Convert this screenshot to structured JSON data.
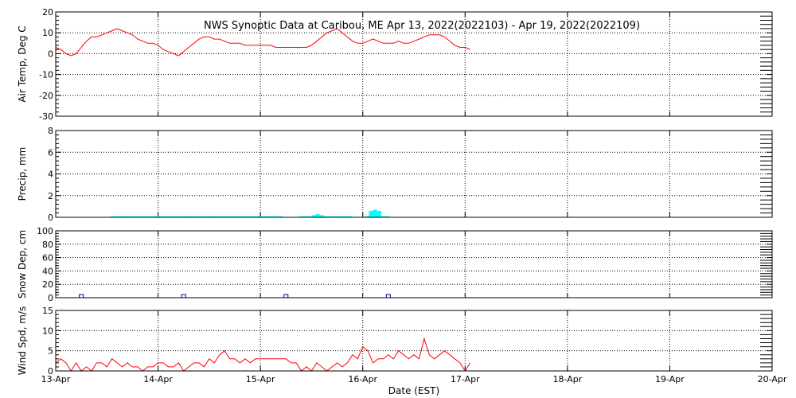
{
  "title": "NWS Synoptic Data at Caribou, ME   Apr 13, 2022(2022103) - Apr 19, 2022(2022109)",
  "xlabel": "Date (EST)",
  "x_ticks": [
    "13-Apr",
    "14-Apr",
    "15-Apr",
    "16-Apr",
    "17-Apr",
    "18-Apr",
    "19-Apr",
    "20-Apr"
  ],
  "colors": {
    "temp": "#ff0000",
    "precip": "#00ffff",
    "snow": "#00008b",
    "wind": "#ff0000",
    "grid": "#000000"
  },
  "chart_data": [
    {
      "type": "line",
      "ylabel": "Air Temp, Deg C",
      "ylim": [
        -30,
        20
      ],
      "y_ticks": [
        20,
        10,
        0,
        -10,
        -20,
        -30
      ],
      "x_units": "days since 13-Apr 00:00 EST",
      "grid": "dotted",
      "series": [
        {
          "x": [
            0.0,
            0.05,
            0.1,
            0.15,
            0.2,
            0.25,
            0.3,
            0.35,
            0.4,
            0.45,
            0.5,
            0.55,
            0.6,
            0.65,
            0.7,
            0.75,
            0.8,
            0.85,
            0.9,
            0.95,
            1.0,
            1.05,
            1.1,
            1.15,
            1.2,
            1.25,
            1.3,
            1.35,
            1.4,
            1.45,
            1.5,
            1.55,
            1.6,
            1.65,
            1.7,
            1.75,
            1.8,
            1.85,
            1.9,
            1.95,
            2.0,
            2.05,
            2.1,
            2.15,
            2.2,
            2.25,
            2.3,
            2.35,
            2.4,
            2.45,
            2.5,
            2.55,
            2.6,
            2.65,
            2.7,
            2.75,
            2.8,
            2.85,
            2.9,
            2.95,
            3.0,
            3.05,
            3.1,
            3.15,
            3.2,
            3.25,
            3.3,
            3.35,
            3.4,
            3.45,
            3.5,
            3.55,
            3.6,
            3.65,
            3.7,
            3.75,
            3.8,
            3.85,
            3.9,
            3.95,
            4.0,
            4.05
          ],
          "values": [
            3,
            2,
            0,
            -1,
            0,
            3,
            6,
            8,
            8,
            9,
            10,
            11,
            12,
            11,
            10,
            9,
            7,
            6,
            5,
            5,
            4,
            2,
            1,
            0,
            -1,
            1,
            3,
            5,
            7,
            8,
            8,
            7,
            7,
            6,
            5,
            5,
            5,
            4,
            4,
            4,
            4,
            4,
            4,
            3,
            3,
            3,
            3,
            3,
            3,
            3,
            4,
            6,
            8,
            10,
            11,
            12,
            10,
            8,
            6,
            5,
            5,
            6,
            7,
            6,
            5,
            5,
            5,
            6,
            5,
            5,
            6,
            7,
            8,
            9,
            9,
            9,
            8,
            6,
            4,
            3,
            3,
            2
          ]
        }
      ]
    },
    {
      "type": "bar",
      "ylabel": "Precip, mm",
      "ylim": [
        0,
        8
      ],
      "y_ticks": [
        8,
        6,
        4,
        2,
        0
      ],
      "x_units": "days since 13-Apr 00:00 EST",
      "x": [
        0.54,
        0.58,
        0.62,
        0.66,
        0.7,
        0.74,
        0.78,
        0.82,
        0.86,
        0.9,
        0.94,
        0.98,
        1.02,
        1.06,
        1.1,
        1.14,
        1.18,
        1.22,
        1.26,
        1.3,
        1.34,
        1.38,
        1.42,
        1.46,
        1.5,
        1.54,
        1.58,
        1.62,
        1.66,
        1.7,
        1.74,
        1.78,
        1.82,
        1.86,
        1.9,
        1.94,
        1.98,
        2.02,
        2.06,
        2.1,
        2.14,
        2.18,
        2.22,
        2.26,
        2.3,
        2.34,
        2.38,
        2.42,
        2.46,
        2.5,
        2.54,
        2.58,
        2.62,
        2.66,
        2.7,
        2.74,
        2.78,
        2.82,
        2.86,
        2.9,
        2.94,
        2.98,
        3.02,
        3.06,
        3.1,
        3.14,
        3.18,
        3.22
      ],
      "values": [
        0.1,
        0.1,
        0.1,
        0.1,
        0.1,
        0.1,
        0.1,
        0.1,
        0.1,
        0.1,
        0.1,
        0.1,
        0.1,
        0.1,
        0.1,
        0.1,
        0.1,
        0.1,
        0.1,
        0.1,
        0.1,
        0.1,
        0.1,
        0.1,
        0.1,
        0.1,
        0.1,
        0.1,
        0.1,
        0.1,
        0.1,
        0.1,
        0.1,
        0.1,
        0.1,
        0.1,
        0.1,
        0.1,
        0.1,
        0.1,
        0.1,
        0.1,
        0,
        0,
        0,
        0,
        0.1,
        0.1,
        0.1,
        0.2,
        0.3,
        0.2,
        0.1,
        0.1,
        0.1,
        0.1,
        0.1,
        0.1,
        0.1,
        0,
        0,
        0,
        0.1,
        0.6,
        0.7,
        0.6,
        0.1,
        0.1
      ]
    },
    {
      "type": "scatter",
      "ylabel": "Snow Dep, cm",
      "ylim": [
        0,
        100
      ],
      "y_ticks": [
        100,
        80,
        60,
        40,
        20,
        0
      ],
      "x_units": "days since 13-Apr 00:00 EST",
      "x": [
        0.25,
        1.25,
        2.25,
        3.25
      ],
      "values": [
        0,
        0,
        0,
        0
      ]
    },
    {
      "type": "line",
      "ylabel": "Wind Spd, m/s",
      "ylim": [
        0,
        15
      ],
      "y_ticks": [
        15,
        10,
        5,
        0
      ],
      "x_units": "days since 13-Apr 00:00 EST",
      "series": [
        {
          "x": [
            0.0,
            0.05,
            0.1,
            0.15,
            0.2,
            0.25,
            0.3,
            0.35,
            0.4,
            0.45,
            0.5,
            0.55,
            0.6,
            0.65,
            0.7,
            0.75,
            0.8,
            0.85,
            0.9,
            0.95,
            1.0,
            1.05,
            1.1,
            1.15,
            1.2,
            1.25,
            1.3,
            1.35,
            1.4,
            1.45,
            1.5,
            1.55,
            1.6,
            1.65,
            1.7,
            1.75,
            1.8,
            1.85,
            1.9,
            1.95,
            2.0,
            2.05,
            2.1,
            2.15,
            2.2,
            2.25,
            2.3,
            2.35,
            2.4,
            2.45,
            2.5,
            2.55,
            2.6,
            2.65,
            2.7,
            2.75,
            2.8,
            2.85,
            2.9,
            2.95,
            3.0,
            3.05,
            3.1,
            3.15,
            3.2,
            3.25,
            3.3,
            3.35,
            3.4,
            3.45,
            3.5,
            3.55,
            3.6,
            3.65,
            3.7,
            3.75,
            3.8,
            3.85,
            3.9,
            3.95,
            4.0,
            4.05
          ],
          "values": [
            2,
            3,
            2,
            0,
            2,
            0,
            1,
            0,
            2,
            2,
            1,
            3,
            2,
            1,
            2,
            1,
            1,
            0,
            1,
            1,
            2,
            2,
            1,
            1,
            2,
            0,
            1,
            2,
            2,
            1,
            3,
            2,
            4,
            5,
            3,
            3,
            2,
            3,
            2,
            3,
            3,
            3,
            3,
            3,
            3,
            3,
            2,
            2,
            0,
            1,
            0,
            2,
            1,
            0,
            1,
            2,
            1,
            2,
            4,
            3,
            6,
            5,
            2,
            3,
            3,
            4,
            3,
            5,
            4,
            3,
            4,
            3,
            8,
            4,
            3,
            4,
            5,
            4,
            3,
            2,
            0,
            2
          ]
        }
      ]
    }
  ]
}
